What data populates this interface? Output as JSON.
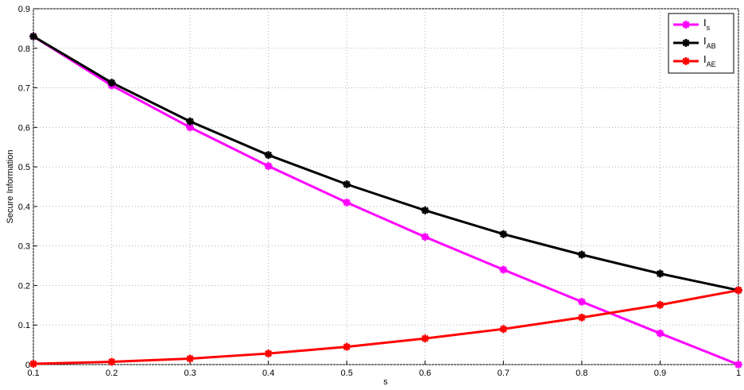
{
  "chart_data": {
    "type": "line",
    "x_label": "s",
    "y_label": "Secure Information",
    "x": [
      0.1,
      0.2,
      0.3,
      0.4,
      0.5,
      0.6,
      0.7,
      0.8,
      0.9,
      1
    ],
    "series": [
      {
        "name": "I",
        "subscript": "s",
        "color": "#ff00ff",
        "values": [
          0.83,
          0.706,
          0.6,
          0.502,
          0.41,
          0.323,
          0.24,
          0.159,
          0.079,
          0.0
        ]
      },
      {
        "name": "I",
        "subscript": "AB",
        "color": "#000000",
        "values": [
          0.83,
          0.713,
          0.615,
          0.53,
          0.456,
          0.39,
          0.33,
          0.278,
          0.23,
          0.188
        ]
      },
      {
        "name": "I",
        "subscript": "AE",
        "color": "#ff0000",
        "values": [
          0.002,
          0.007,
          0.015,
          0.028,
          0.045,
          0.066,
          0.09,
          0.119,
          0.151,
          0.188
        ]
      }
    ],
    "xlim": [
      0.1,
      1
    ],
    "xticks": [
      0.1,
      0.2,
      0.3,
      0.4,
      0.5,
      0.6,
      0.7,
      0.8,
      0.9,
      1
    ],
    "ylim": [
      0,
      0.9
    ],
    "yticks": [
      0,
      0.1,
      0.2,
      0.3,
      0.4,
      0.5,
      0.6,
      0.7,
      0.8,
      0.9
    ],
    "grid": true,
    "legend": "upper right"
  }
}
